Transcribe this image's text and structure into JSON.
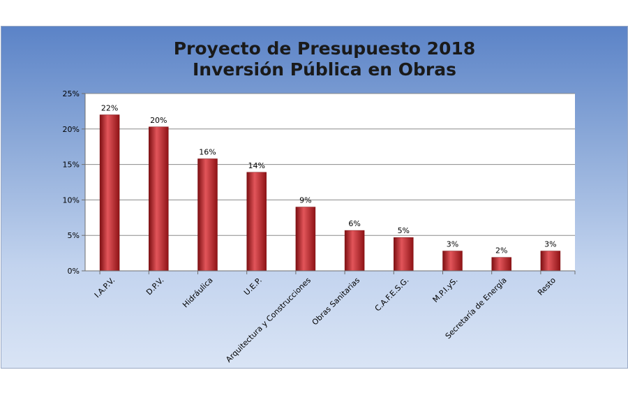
{
  "chart_data": {
    "type": "bar",
    "title": [
      "Proyecto de Presupuesto 2018",
      "Inversión Pública en Obras"
    ],
    "categories": [
      "I.A.P.V.",
      "D.P.V.",
      "Hidráulica",
      "U.E.P.",
      "Arquitectura y Construcciones",
      "Obras Sanitarias",
      "C.A.F.E.S.G.",
      "M.P.I.yS.",
      "Secretaría de Energía",
      "Resto"
    ],
    "values": [
      22,
      20.3,
      15.8,
      13.9,
      9,
      5.7,
      4.7,
      2.8,
      1.9,
      2.8
    ],
    "data_labels": [
      "22%",
      "20%",
      "16%",
      "14%",
      "9%",
      "6%",
      "5%",
      "3%",
      "2%",
      "3%"
    ],
    "ylim": [
      0,
      25
    ],
    "yticks": [
      0,
      5,
      10,
      15,
      20,
      25
    ],
    "ytick_labels": [
      "0%",
      "5%",
      "10%",
      "15%",
      "20%",
      "25%"
    ],
    "xlabel": "",
    "ylabel": "",
    "grid": true,
    "legend": "none",
    "colors": {
      "bar": "#b81e22",
      "bar_dark": "#7d0f12",
      "bar_light": "#e2555a",
      "plot_bg": "#ffffff",
      "grid": "#8a8a8a"
    }
  }
}
